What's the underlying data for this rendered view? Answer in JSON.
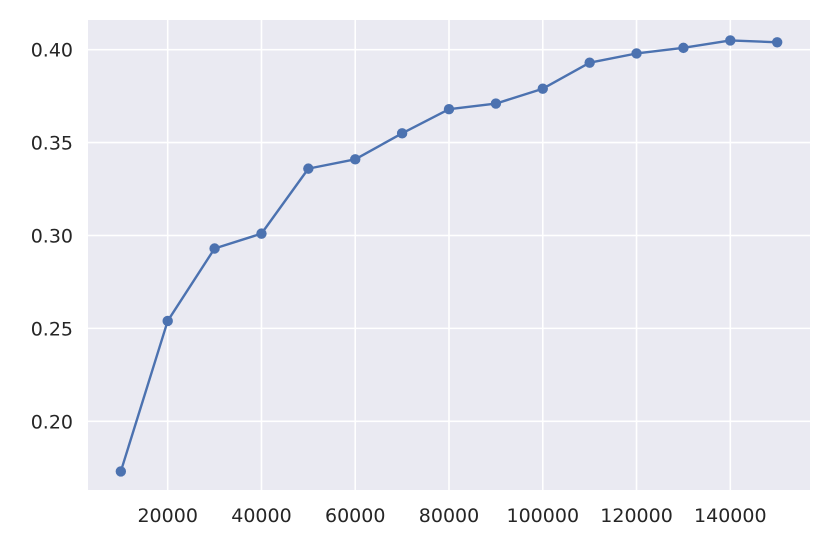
{
  "chart_data": {
    "type": "line",
    "title": "",
    "xlabel": "",
    "ylabel": "",
    "xlim": [
      3000,
      157000
    ],
    "ylim": [
      0.163,
      0.416
    ],
    "x_ticks": [
      20000,
      40000,
      60000,
      80000,
      100000,
      120000,
      140000
    ],
    "x_tick_labels": [
      "20000",
      "40000",
      "60000",
      "80000",
      "100000",
      "120000",
      "140000"
    ],
    "y_ticks": [
      0.2,
      0.25,
      0.3,
      0.35,
      0.4
    ],
    "y_tick_labels": [
      "0.20",
      "0.25",
      "0.30",
      "0.35",
      "0.40"
    ],
    "grid": true,
    "legend": "none",
    "background_color": "#eaeaf2",
    "grid_color": "#ffffff",
    "series": [
      {
        "color": "#4c72b0",
        "marker": "circle",
        "x": [
          10000,
          20000,
          30000,
          40000,
          50000,
          60000,
          70000,
          80000,
          90000,
          100000,
          110000,
          120000,
          130000,
          140000,
          150000
        ],
        "y": [
          0.173,
          0.254,
          0.293,
          0.301,
          0.336,
          0.341,
          0.355,
          0.368,
          0.371,
          0.379,
          0.393,
          0.398,
          0.401,
          0.405,
          0.404
        ]
      }
    ]
  }
}
